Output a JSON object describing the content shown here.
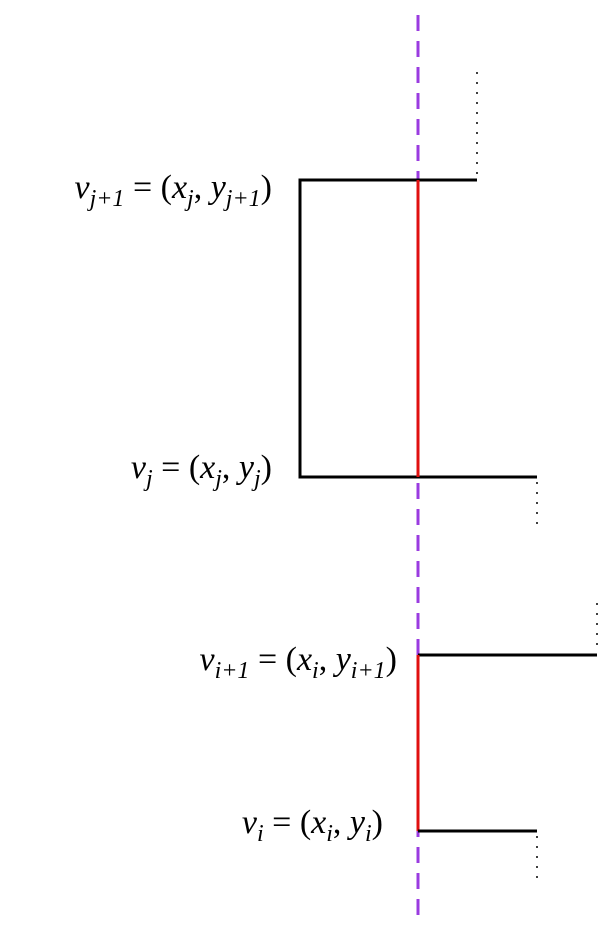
{
  "labels": [
    {
      "parts": [
        {
          "base": "v",
          "sub": "j+1"
        },
        {
          "base": " = ("
        },
        {
          "base": "x",
          "sub": "j"
        },
        {
          "base": ", "
        },
        {
          "base": "y",
          "sub": "j+1"
        },
        {
          "base": ")"
        }
      ]
    },
    {
      "parts": [
        {
          "base": "v",
          "sub": "j"
        },
        {
          "base": " = ("
        },
        {
          "base": "x",
          "sub": "j"
        },
        {
          "base": ", "
        },
        {
          "base": "y",
          "sub": "j"
        },
        {
          "base": ")"
        }
      ]
    },
    {
      "parts": [
        {
          "base": "v",
          "sub": "i+1"
        },
        {
          "base": " = ("
        },
        {
          "base": "x",
          "sub": "i"
        },
        {
          "base": ", "
        },
        {
          "base": "y",
          "sub": "i+1"
        },
        {
          "base": ")"
        }
      ]
    },
    {
      "parts": [
        {
          "base": "v",
          "sub": "i"
        },
        {
          "base": " = ("
        },
        {
          "base": "x",
          "sub": "i"
        },
        {
          "base": ", "
        },
        {
          "base": "y",
          "sub": "i"
        },
        {
          "base": ")"
        }
      ]
    }
  ]
}
